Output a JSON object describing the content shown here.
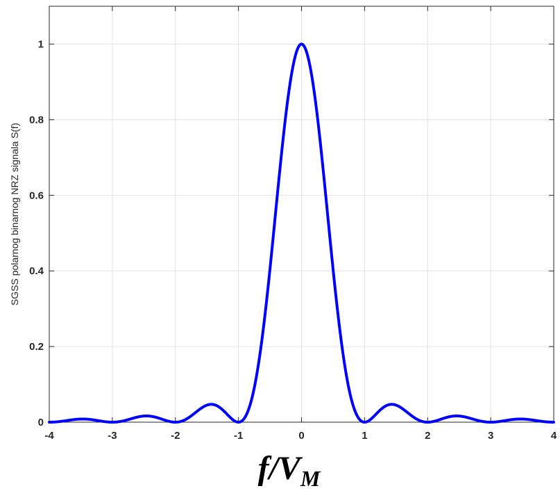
{
  "chart_data": {
    "type": "line",
    "title": "",
    "xlabel": {
      "main": "f/V",
      "subscript": "M"
    },
    "ylabel": "SGSS polarnog binarnog NRZ signala S(f)",
    "xlim": [
      -4,
      4
    ],
    "ylim": [
      0,
      1.1
    ],
    "xticks": [
      -4,
      -3,
      -2,
      -1,
      0,
      1,
      2,
      3,
      4
    ],
    "xtick_labels": [
      "-4",
      "-3",
      "-2",
      "-1",
      "0",
      "1",
      "2",
      "3",
      "4"
    ],
    "yticks": [
      0,
      0.2,
      0.4,
      0.6,
      0.8,
      1
    ],
    "ytick_labels": [
      "0",
      "0.2",
      "0.4",
      "0.6",
      "0.8",
      "1"
    ],
    "grid": true,
    "series": [
      {
        "color": "#0000ff",
        "x": [
          -4,
          -3.5,
          -3,
          -2.5,
          -2,
          -1.5,
          -1.43,
          -1,
          -0.8,
          -0.6,
          -0.5,
          -0.4,
          -0.2,
          0,
          0.2,
          0.4,
          0.5,
          0.6,
          0.8,
          1,
          1.43,
          1.5,
          2,
          2.5,
          3,
          3.5,
          4
        ],
        "y": [
          0,
          0.008,
          0,
          0.016,
          0,
          0.045,
          0.047,
          0,
          0.055,
          0.255,
          0.405,
          0.573,
          0.875,
          1,
          0.875,
          0.573,
          0.405,
          0.255,
          0.055,
          0,
          0.047,
          0.045,
          0,
          0.016,
          0,
          0.008,
          0
        ]
      }
    ]
  },
  "colors": {
    "line": "#0000ff",
    "axis": "#262626",
    "grid": "#e3e3e3"
  }
}
